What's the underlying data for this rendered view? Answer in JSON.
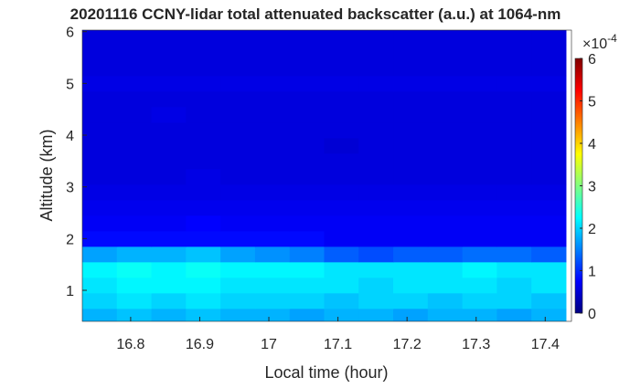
{
  "chart_data": {
    "type": "heatmap",
    "title": "20201116 CCNY-lidar total attenuated backscatter (a.u.) at 1064-nm",
    "x_label": "Local time (hour)",
    "y_label": "Altitude (km)",
    "x": [
      16.755,
      16.805,
      16.855,
      16.905,
      16.955,
      17.005,
      17.055,
      17.105,
      17.155,
      17.205,
      17.255,
      17.305,
      17.355,
      17.405
    ],
    "y": [
      0.5,
      0.8,
      1.1,
      1.4,
      1.7,
      2.0,
      2.3,
      2.6,
      2.9,
      3.2,
      3.5,
      3.8,
      4.1,
      4.4,
      4.7,
      5.0,
      5.3,
      5.6,
      5.9
    ],
    "z": [
      [
        1.8,
        1.9,
        1.8,
        1.9,
        1.8,
        1.8,
        1.7,
        1.8,
        1.8,
        1.7,
        1.8,
        1.8,
        1.7,
        1.8
      ],
      [
        2.0,
        2.1,
        2.0,
        2.1,
        2.0,
        2.0,
        2.0,
        1.9,
        2.0,
        2.0,
        1.9,
        2.0,
        2.0,
        1.9
      ],
      [
        2.1,
        2.2,
        2.2,
        2.2,
        2.1,
        2.1,
        2.1,
        2.1,
        2.0,
        2.1,
        2.1,
        2.1,
        2.0,
        2.1
      ],
      [
        2.2,
        2.3,
        2.2,
        2.3,
        2.2,
        2.2,
        2.2,
        2.1,
        2.1,
        2.1,
        2.1,
        2.2,
        2.1,
        2.1
      ],
      [
        1.7,
        1.8,
        1.8,
        1.9,
        1.7,
        1.6,
        1.5,
        1.3,
        1.2,
        1.3,
        1.3,
        1.4,
        1.4,
        1.3
      ],
      [
        0.8,
        0.8,
        0.8,
        0.8,
        0.8,
        0.8,
        0.8,
        0.7,
        0.7,
        0.7,
        0.7,
        0.7,
        0.7,
        0.7
      ],
      [
        0.7,
        0.7,
        0.7,
        0.75,
        0.7,
        0.7,
        0.7,
        0.7,
        0.7,
        0.7,
        0.7,
        0.7,
        0.7,
        0.7
      ],
      [
        0.65,
        0.65,
        0.65,
        0.65,
        0.65,
        0.65,
        0.65,
        0.65,
        0.65,
        0.65,
        0.65,
        0.65,
        0.65,
        0.65
      ],
      [
        0.6,
        0.6,
        0.6,
        0.6,
        0.6,
        0.6,
        0.6,
        0.6,
        0.6,
        0.6,
        0.6,
        0.6,
        0.6,
        0.6
      ],
      [
        0.55,
        0.55,
        0.55,
        0.6,
        0.55,
        0.55,
        0.55,
        0.55,
        0.55,
        0.55,
        0.55,
        0.55,
        0.55,
        0.55
      ],
      [
        0.55,
        0.55,
        0.55,
        0.55,
        0.55,
        0.55,
        0.55,
        0.55,
        0.55,
        0.55,
        0.55,
        0.55,
        0.55,
        0.55
      ],
      [
        0.55,
        0.55,
        0.55,
        0.55,
        0.55,
        0.55,
        0.55,
        0.5,
        0.55,
        0.55,
        0.55,
        0.55,
        0.55,
        0.55
      ],
      [
        0.55,
        0.55,
        0.55,
        0.55,
        0.55,
        0.55,
        0.55,
        0.55,
        0.55,
        0.55,
        0.55,
        0.55,
        0.55,
        0.55
      ],
      [
        0.55,
        0.55,
        0.6,
        0.55,
        0.55,
        0.55,
        0.55,
        0.55,
        0.55,
        0.55,
        0.55,
        0.55,
        0.55,
        0.55
      ],
      [
        0.55,
        0.55,
        0.55,
        0.55,
        0.55,
        0.55,
        0.55,
        0.55,
        0.55,
        0.55,
        0.55,
        0.55,
        0.55,
        0.55
      ],
      [
        0.6,
        0.6,
        0.6,
        0.6,
        0.6,
        0.6,
        0.6,
        0.6,
        0.6,
        0.6,
        0.6,
        0.6,
        0.6,
        0.6
      ],
      [
        0.55,
        0.55,
        0.55,
        0.55,
        0.55,
        0.55,
        0.55,
        0.55,
        0.55,
        0.55,
        0.55,
        0.55,
        0.55,
        0.55
      ],
      [
        0.55,
        0.55,
        0.55,
        0.55,
        0.55,
        0.55,
        0.55,
        0.55,
        0.55,
        0.55,
        0.55,
        0.55,
        0.55,
        0.55
      ],
      [
        0.55,
        0.55,
        0.55,
        0.55,
        0.55,
        0.55,
        0.55,
        0.55,
        0.55,
        0.55,
        0.55,
        0.55,
        0.55,
        0.55
      ]
    ],
    "xlim": [
      16.73,
      17.438
    ],
    "xticks": [
      16.8,
      16.9,
      17,
      17.1,
      17.2,
      17.3,
      17.4
    ],
    "ylim": [
      0.4,
      6.03
    ],
    "yticks": [
      1,
      2,
      3,
      4,
      5,
      6
    ],
    "colormap": "jet",
    "clim": [
      0,
      6
    ],
    "cticks": [
      0,
      1,
      2,
      3,
      4,
      5,
      6
    ],
    "colorbar_exponent_base": "×10",
    "colorbar_exponent": "-4"
  }
}
